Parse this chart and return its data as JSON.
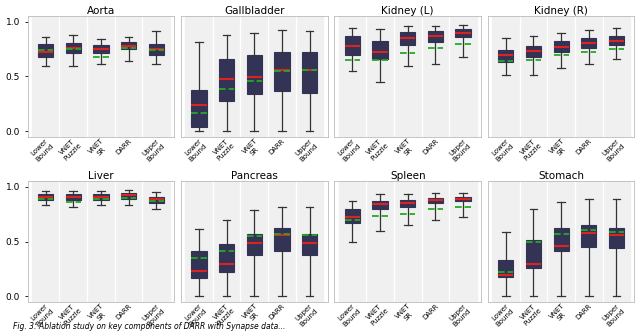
{
  "titles": [
    "Aorta",
    "Gallbladder",
    "Kidney (L)",
    "Kidney (R)",
    "Liver",
    "Pancreas",
    "Spleen",
    "Stomach"
  ],
  "categories": [
    "Lower\nBound",
    "VNET\nPuzzle",
    "VNET\nSR",
    "DARR",
    "Upper\nBound"
  ],
  "box_facecolor": "#5b82c0",
  "box_edgecolor": "#333355",
  "median_color": "#dd2222",
  "mean_color": "#22aa22",
  "whisker_color": "#333333",
  "separator_color": "#cccccc",
  "bg_color": "#f0f0f0",
  "box_data": {
    "Aorta": [
      {
        "min": 0.595,
        "q1": 0.675,
        "median": 0.725,
        "mean": 0.738,
        "q3": 0.793,
        "max": 0.862
      },
      {
        "min": 0.598,
        "q1": 0.718,
        "median": 0.762,
        "mean": 0.75,
        "q3": 0.806,
        "max": 0.876
      },
      {
        "min": 0.618,
        "q1": 0.712,
        "median": 0.748,
        "mean": 0.682,
        "q3": 0.788,
        "max": 0.843
      },
      {
        "min": 0.642,
        "q1": 0.753,
        "median": 0.783,
        "mean": 0.76,
        "q3": 0.813,
        "max": 0.863
      },
      {
        "min": 0.618,
        "q1": 0.692,
        "median": 0.748,
        "mean": 0.745,
        "q3": 0.798,
        "max": 0.912
      }
    ],
    "Gallbladder": [
      {
        "min": 0.0,
        "q1": 0.035,
        "median": 0.235,
        "mean": 0.162,
        "q3": 0.375,
        "max": 0.815
      },
      {
        "min": 0.0,
        "q1": 0.278,
        "median": 0.478,
        "mean": 0.382,
        "q3": 0.662,
        "max": 0.878
      },
      {
        "min": 0.0,
        "q1": 0.338,
        "median": 0.498,
        "mean": 0.462,
        "q3": 0.692,
        "max": 0.898
      },
      {
        "min": 0.0,
        "q1": 0.368,
        "median": 0.558,
        "mean": 0.552,
        "q3": 0.728,
        "max": 0.928
      },
      {
        "min": 0.0,
        "q1": 0.348,
        "median": 0.558,
        "mean": 0.558,
        "q3": 0.728,
        "max": 0.912
      }
    ],
    "Kidney (L)": [
      {
        "min": 0.548,
        "q1": 0.698,
        "median": 0.778,
        "mean": 0.648,
        "q3": 0.872,
        "max": 0.942
      },
      {
        "min": 0.448,
        "q1": 0.662,
        "median": 0.728,
        "mean": 0.648,
        "q3": 0.828,
        "max": 0.938
      },
      {
        "min": 0.598,
        "q1": 0.792,
        "median": 0.852,
        "mean": 0.718,
        "q3": 0.908,
        "max": 0.962
      },
      {
        "min": 0.618,
        "q1": 0.812,
        "median": 0.868,
        "mean": 0.758,
        "q3": 0.912,
        "max": 0.962
      },
      {
        "min": 0.678,
        "q1": 0.858,
        "median": 0.898,
        "mean": 0.798,
        "q3": 0.938,
        "max": 0.972
      }
    ],
    "Kidney (R)": [
      {
        "min": 0.518,
        "q1": 0.632,
        "median": 0.692,
        "mean": 0.642,
        "q3": 0.742,
        "max": 0.852
      },
      {
        "min": 0.518,
        "q1": 0.678,
        "median": 0.732,
        "mean": 0.652,
        "q3": 0.778,
        "max": 0.872
      },
      {
        "min": 0.578,
        "q1": 0.728,
        "median": 0.772,
        "mean": 0.692,
        "q3": 0.822,
        "max": 0.902
      },
      {
        "min": 0.618,
        "q1": 0.762,
        "median": 0.808,
        "mean": 0.728,
        "q3": 0.852,
        "max": 0.928
      },
      {
        "min": 0.658,
        "q1": 0.788,
        "median": 0.828,
        "mean": 0.752,
        "q3": 0.872,
        "max": 0.942
      }
    ],
    "Liver": [
      {
        "min": 0.832,
        "q1": 0.878,
        "median": 0.908,
        "mean": 0.892,
        "q3": 0.932,
        "max": 0.962
      },
      {
        "min": 0.818,
        "q1": 0.878,
        "median": 0.912,
        "mean": 0.858,
        "q3": 0.938,
        "max": 0.962
      },
      {
        "min": 0.838,
        "q1": 0.882,
        "median": 0.912,
        "mean": 0.892,
        "q3": 0.936,
        "max": 0.962
      },
      {
        "min": 0.838,
        "q1": 0.892,
        "median": 0.922,
        "mean": 0.898,
        "q3": 0.942,
        "max": 0.968
      },
      {
        "min": 0.798,
        "q1": 0.852,
        "median": 0.888,
        "mean": 0.872,
        "q3": 0.912,
        "max": 0.952
      }
    ],
    "Pancreas": [
      {
        "min": 0.0,
        "q1": 0.168,
        "median": 0.228,
        "mean": 0.352,
        "q3": 0.412,
        "max": 0.618
      },
      {
        "min": 0.0,
        "q1": 0.218,
        "median": 0.298,
        "mean": 0.412,
        "q3": 0.482,
        "max": 0.698
      },
      {
        "min": 0.0,
        "q1": 0.378,
        "median": 0.488,
        "mean": 0.552,
        "q3": 0.572,
        "max": 0.788
      },
      {
        "min": 0.0,
        "q1": 0.412,
        "median": 0.558,
        "mean": 0.572,
        "q3": 0.622,
        "max": 0.818
      },
      {
        "min": 0.0,
        "q1": 0.378,
        "median": 0.488,
        "mean": 0.558,
        "q3": 0.572,
        "max": 0.812
      }
    ],
    "Spleen": [
      {
        "min": 0.498,
        "q1": 0.668,
        "median": 0.728,
        "mean": 0.698,
        "q3": 0.798,
        "max": 0.872
      },
      {
        "min": 0.598,
        "q1": 0.798,
        "median": 0.842,
        "mean": 0.738,
        "q3": 0.872,
        "max": 0.932
      },
      {
        "min": 0.648,
        "q1": 0.812,
        "median": 0.852,
        "mean": 0.748,
        "q3": 0.878,
        "max": 0.932
      },
      {
        "min": 0.698,
        "q1": 0.852,
        "median": 0.878,
        "mean": 0.798,
        "q3": 0.898,
        "max": 0.942
      },
      {
        "min": 0.728,
        "q1": 0.872,
        "median": 0.892,
        "mean": 0.818,
        "q3": 0.912,
        "max": 0.948
      }
    ],
    "Stomach": [
      {
        "min": 0.0,
        "q1": 0.178,
        "median": 0.198,
        "mean": 0.218,
        "q3": 0.328,
        "max": 0.592
      },
      {
        "min": 0.0,
        "q1": 0.258,
        "median": 0.292,
        "mean": 0.492,
        "q3": 0.518,
        "max": 0.798
      },
      {
        "min": 0.0,
        "q1": 0.418,
        "median": 0.462,
        "mean": 0.572,
        "q3": 0.628,
        "max": 0.858
      },
      {
        "min": 0.0,
        "q1": 0.452,
        "median": 0.578,
        "mean": 0.602,
        "q3": 0.648,
        "max": 0.892
      },
      {
        "min": 0.0,
        "q1": 0.442,
        "median": 0.558,
        "mean": 0.592,
        "q3": 0.628,
        "max": 0.888
      }
    ]
  },
  "figsize": [
    6.4,
    3.33
  ],
  "dpi": 100
}
